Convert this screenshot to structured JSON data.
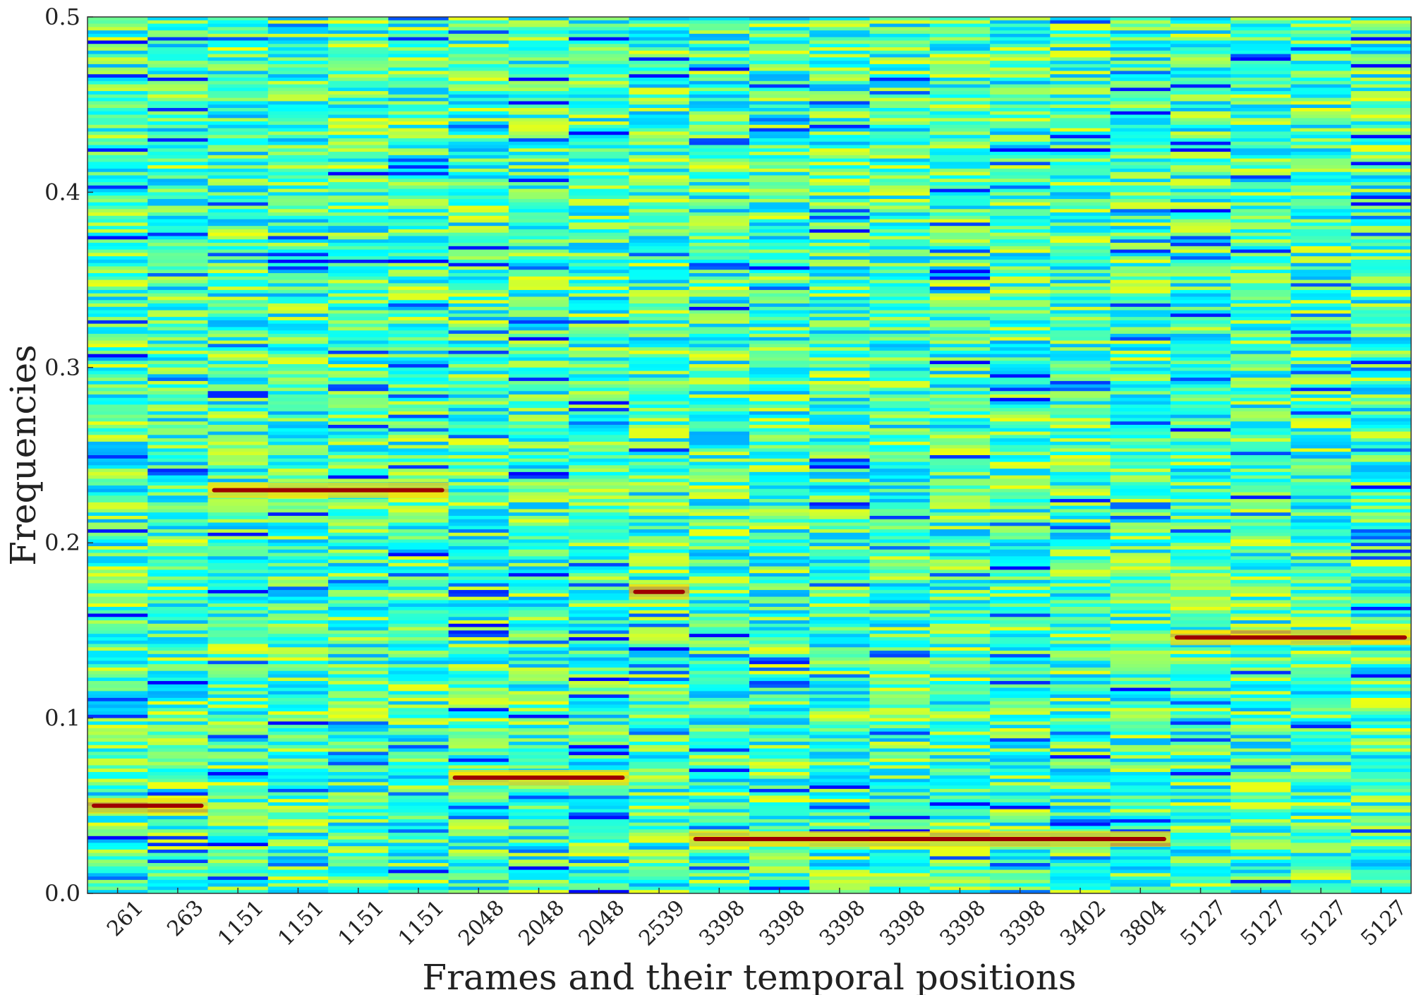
{
  "chart_data": {
    "type": "heatmap",
    "title": "",
    "xlabel": "Frames and their temporal positions",
    "ylabel": "Frequencies",
    "x_tick_labels": [
      "261",
      "263",
      "1151",
      "1151",
      "1151",
      "1151",
      "2048",
      "2048",
      "2048",
      "2539",
      "3398",
      "3398",
      "3398",
      "3398",
      "3398",
      "3398",
      "3402",
      "3804",
      "5127",
      "5127",
      "5127",
      "5127"
    ],
    "y_ticks": [
      0.0,
      0.1,
      0.2,
      0.3,
      0.4,
      0.5
    ],
    "y_tick_labels": [
      "0.0",
      "0.1",
      "0.2",
      "0.3",
      "0.4",
      "0.5"
    ],
    "ylim": [
      0.0,
      0.5
    ],
    "colormap": "jet",
    "background_level": 0.45,
    "peaks": [
      {
        "frames": [
          0,
          1
        ],
        "frequency": 0.05
      },
      {
        "frames": [
          2,
          3,
          4,
          5
        ],
        "frequency": 0.23
      },
      {
        "frames": [
          6,
          7,
          8
        ],
        "frequency": 0.066
      },
      {
        "frames": [
          9
        ],
        "frequency": 0.172
      },
      {
        "frames": [
          10,
          11,
          12,
          13,
          14,
          15,
          16,
          17
        ],
        "frequency": 0.031
      },
      {
        "frames": [
          18,
          19,
          20,
          21
        ],
        "frequency": 0.146
      }
    ],
    "grid": false,
    "legend": false
  }
}
